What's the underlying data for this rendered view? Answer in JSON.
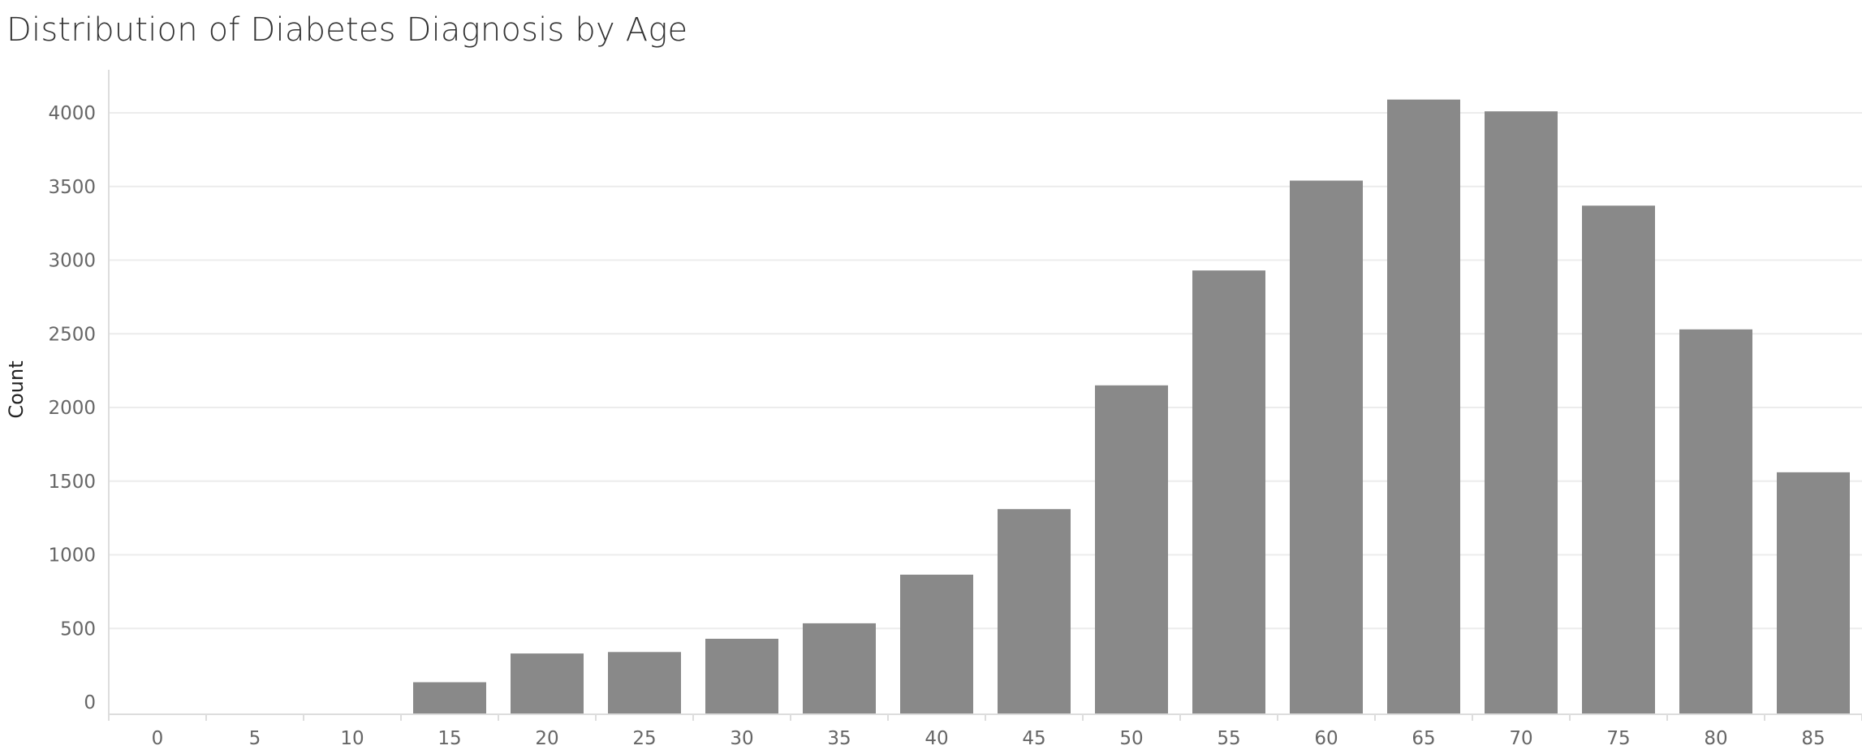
{
  "chart_data": {
    "type": "bar",
    "title": "Distribution of Diabetes Diagnosis by Age",
    "xlabel": "",
    "ylabel": "Count",
    "categories": [
      "0",
      "5",
      "10",
      "15",
      "20",
      "25",
      "30",
      "35",
      "40",
      "45",
      "50",
      "55",
      "60",
      "65",
      "70",
      "75",
      "80",
      "85"
    ],
    "values": [
      0,
      0,
      0,
      135,
      330,
      340,
      430,
      535,
      865,
      1310,
      2150,
      2930,
      3540,
      4090,
      4010,
      3370,
      2530,
      1560
    ],
    "y_ticks": [
      "0",
      "500",
      "1000",
      "1500",
      "2000",
      "2500",
      "3000",
      "3500",
      "4000"
    ],
    "ylim": [
      -100,
      4200
    ],
    "grid": true,
    "legend": "none",
    "colors": {
      "bar": "#898989",
      "grid": "#ececec",
      "axis": "#dddddd",
      "tick_text": "#666666",
      "title_text": "#333333"
    }
  }
}
